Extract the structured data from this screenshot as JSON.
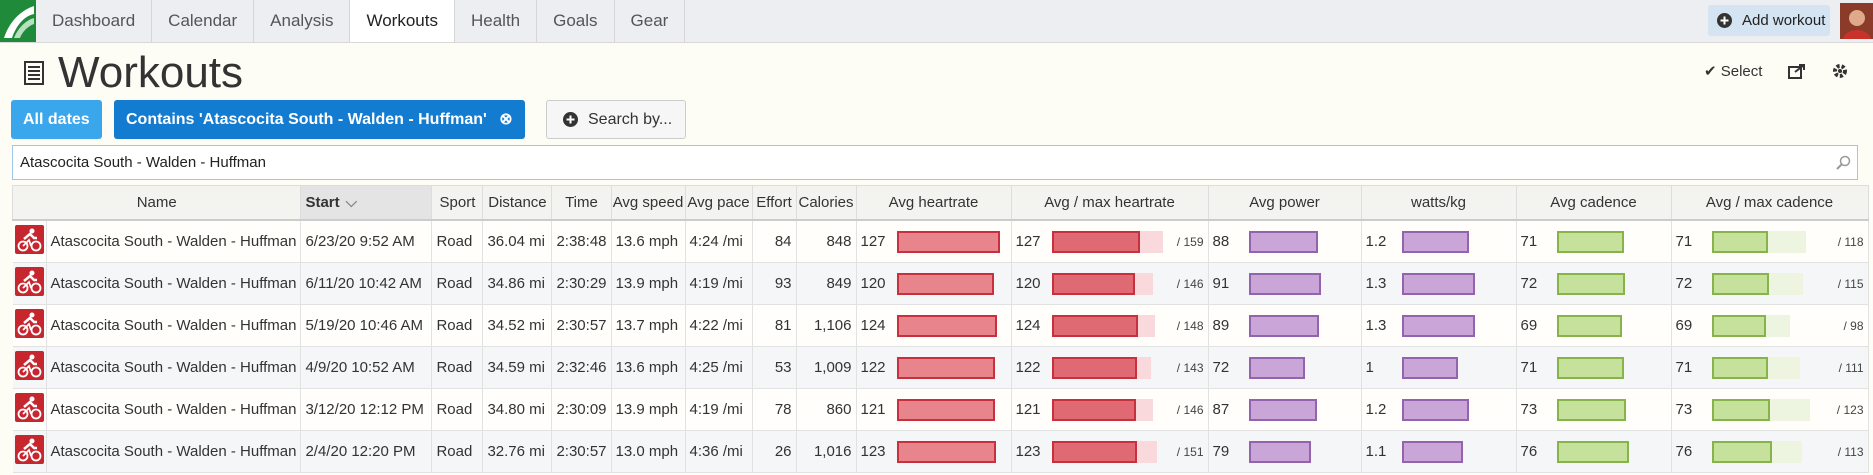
{
  "nav": {
    "items": [
      "Dashboard",
      "Calendar",
      "Analysis",
      "Workouts",
      "Health",
      "Goals",
      "Gear"
    ],
    "add_workout": "Add workout"
  },
  "header": {
    "title": "Workouts",
    "select": "Select"
  },
  "filters": {
    "chips": [
      "All dates",
      "Contains 'Atascocita South - Walden - Huffman'"
    ],
    "search_by": "Search by..."
  },
  "search": {
    "value": "Atascocita South - Walden - Huffman"
  },
  "table": {
    "columns": [
      "Name",
      "Start",
      "Sport",
      "Distance",
      "Time",
      "Avg speed",
      "Avg pace",
      "Effort",
      "Calories",
      "Avg heartrate",
      "Avg / max heartrate",
      "Avg power",
      "watts/kg",
      "Avg cadence",
      "Avg / max cadence"
    ],
    "rows": [
      {
        "name": "Atascocita South - Walden - Huffman",
        "start": "6/23/20 9:52 AM",
        "sport": "Road",
        "distance": "36.04 mi",
        "time": "2:38:48",
        "avg_speed": "13.6 mph",
        "avg_pace": "4:24 /mi",
        "effort": 84,
        "calories": "848",
        "avg_heartrate": 127,
        "max_heartrate": {
          "value": 159,
          "label": "/ 159"
        },
        "avg_power": 88,
        "watts_kg": 1.2,
        "avg_cadence": 71,
        "max_cadence": {
          "value": 118,
          "label": "/ 118"
        }
      },
      {
        "name": "Atascocita South - Walden - Huffman",
        "start": "6/11/20 10:42 AM",
        "sport": "Road",
        "distance": "34.86 mi",
        "time": "2:30:29",
        "avg_speed": "13.9 mph",
        "avg_pace": "4:19 /mi",
        "effort": 93,
        "calories": "849",
        "avg_heartrate": 120,
        "max_heartrate": {
          "value": 146,
          "label": "/ 146"
        },
        "avg_power": 91,
        "watts_kg": 1.3,
        "avg_cadence": 72,
        "max_cadence": {
          "value": 115,
          "label": "/ 115"
        }
      },
      {
        "name": "Atascocita South - Walden - Huffman",
        "start": "5/19/20 10:46 AM",
        "sport": "Road",
        "distance": "34.52 mi",
        "time": "2:30:57",
        "avg_speed": "13.7 mph",
        "avg_pace": "4:22 /mi",
        "effort": 81,
        "calories": "1,106",
        "avg_heartrate": 124,
        "max_heartrate": {
          "value": 148,
          "label": "/ 148"
        },
        "avg_power": 89,
        "watts_kg": 1.3,
        "avg_cadence": 69,
        "max_cadence": {
          "value": 98,
          "label": "/ 98"
        }
      },
      {
        "name": "Atascocita South - Walden - Huffman",
        "start": "4/9/20 10:52 AM",
        "sport": "Road",
        "distance": "34.59 mi",
        "time": "2:32:46",
        "avg_speed": "13.6 mph",
        "avg_pace": "4:25 /mi",
        "effort": 53,
        "calories": "1,009",
        "avg_heartrate": 122,
        "max_heartrate": {
          "value": 143,
          "label": "/ 143"
        },
        "avg_power": 72,
        "watts_kg": 1.0,
        "avg_cadence": 71,
        "max_cadence": {
          "value": 111,
          "label": "/ 111"
        }
      },
      {
        "name": "Atascocita South - Walden - Huffman",
        "start": "3/12/20 12:12 PM",
        "sport": "Road",
        "distance": "34.80 mi",
        "time": "2:30:09",
        "avg_speed": "13.9 mph",
        "avg_pace": "4:19 /mi",
        "effort": 78,
        "calories": "860",
        "avg_heartrate": 121,
        "max_heartrate": {
          "value": 146,
          "label": "/ 146"
        },
        "avg_power": 87,
        "watts_kg": 1.2,
        "avg_cadence": 73,
        "max_cadence": {
          "value": 123,
          "label": "/ 123"
        }
      },
      {
        "name": "Atascocita South - Walden - Huffman",
        "start": "2/4/20 12:20 PM",
        "sport": "Road",
        "distance": "32.76 mi",
        "time": "2:30:57",
        "avg_speed": "13.0 mph",
        "avg_pace": "4:36 /mi",
        "effort": 26,
        "calories": "1,016",
        "avg_heartrate": 123,
        "max_heartrate": {
          "value": 151,
          "label": "/ 151"
        },
        "avg_power": 79,
        "watts_kg": 1.1,
        "avg_cadence": 76,
        "max_cadence": {
          "value": 113,
          "label": "/ 113"
        }
      }
    ]
  }
}
